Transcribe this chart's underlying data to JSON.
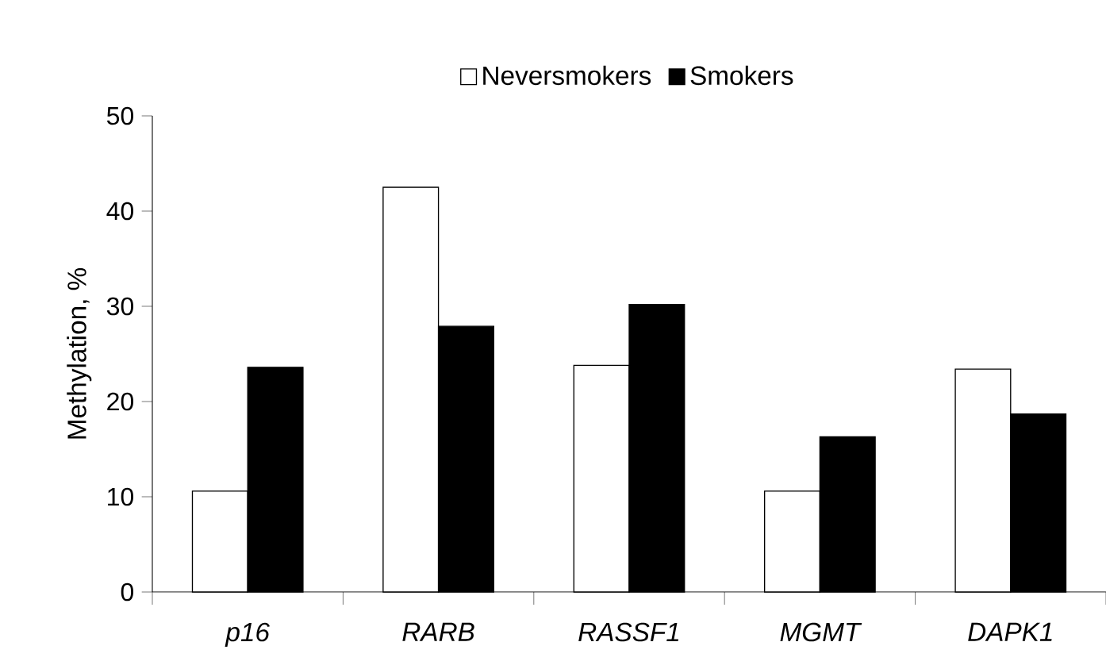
{
  "chart_data": {
    "type": "bar",
    "categories": [
      "p16",
      "RARB",
      "RASSF1",
      "MGMT",
      "DAPK1"
    ],
    "series": [
      {
        "name": "Neversmokers",
        "color": "#ffffff",
        "values": [
          10.6,
          42.5,
          23.8,
          10.6,
          23.4
        ]
      },
      {
        "name": "Smokers",
        "color": "#000000",
        "values": [
          23.6,
          27.9,
          30.2,
          16.3,
          18.7
        ]
      }
    ],
    "ylabel": "Methylation, %",
    "ylim": [
      0,
      50
    ],
    "yticks": [
      0,
      10,
      20,
      30,
      40,
      50
    ],
    "legend": "top",
    "grid": false
  }
}
